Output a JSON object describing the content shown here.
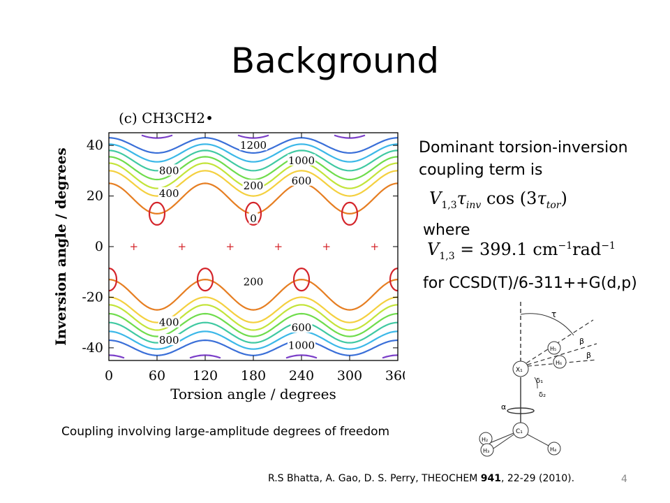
{
  "slide": {
    "title": "Background",
    "caption": "Coupling involving large-amplitude degrees of freedom",
    "citation": {
      "prefix": "R.S Bhatta, A. Gao, D. S. Perry, THEOCHEM ",
      "volume": "941",
      "suffix": ", 22-29 (2010)."
    },
    "page_number": "4"
  },
  "right_panel": {
    "line1": "Dominant torsion-inversion",
    "line2": "coupling term is",
    "where": "where",
    "method": "for CCSD(T)/6-311++G(d,p)",
    "eq1": {
      "V": "V",
      "sub": "1,3",
      "tau": "τ",
      "inv": "inv",
      "cos": "cos",
      "arg3": "(3",
      "tor": "tor",
      "close": ")"
    },
    "eq2": {
      "V": "V",
      "sub": "1,3",
      "eq": "= 399.1 cm",
      "exp1": "−1",
      "rad": "rad",
      "exp2": "−1"
    }
  },
  "chart_data": {
    "type": "contour",
    "title": "(c) CH3CH2•",
    "xlabel": "Torsion angle / degrees",
    "ylabel": "Inversion angle / degrees",
    "xlim": [
      0,
      360
    ],
    "ylim": [
      -45,
      45
    ],
    "xticks": [
      "0",
      "60",
      "120",
      "180",
      "240",
      "300",
      "360"
    ],
    "yticks": [
      "40",
      "20",
      "0",
      "-20",
      "-40"
    ],
    "contour_labels": [
      "1200",
      "1000",
      "800",
      "600",
      "400",
      "200",
      "0",
      "200",
      "400",
      "600",
      "800",
      "1000"
    ],
    "minima_markers_x": [
      30,
      90,
      150,
      210,
      270,
      330
    ],
    "colors": [
      "#d4242a",
      "#e67e22",
      "#f4d03f",
      "#c3e43a",
      "#6fdc4c",
      "#40c9a2",
      "#3cb8e8",
      "#3a6fd8",
      "#7b3fc8"
    ]
  },
  "diagram": {
    "tau": "τ",
    "beta1": "β",
    "beta2": "β",
    "delta1": "δ₁",
    "delta2": "δ₂",
    "alpha": "α",
    "x1": "X₁",
    "h5": "H₅",
    "h6": "H₆",
    "c1": "C₁",
    "h2": "H₂",
    "h3": "H₃",
    "h4": "H₄"
  }
}
